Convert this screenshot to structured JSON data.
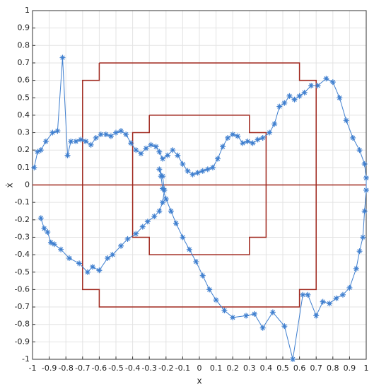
{
  "chart_data": {
    "type": "line",
    "xlabel": "x",
    "ylabel": "ẋ",
    "xlim": [
      -1,
      1
    ],
    "ylim": [
      -1,
      1
    ],
    "xticks": [
      -1,
      -0.9,
      -0.8,
      -0.7,
      -0.6,
      -0.5,
      -0.4,
      -0.3,
      -0.2,
      -0.1,
      0,
      0.1,
      0.2,
      0.3,
      0.4,
      0.5,
      0.6,
      0.7,
      0.8,
      0.9,
      1
    ],
    "yticks": [
      -1,
      -0.9,
      -0.8,
      -0.7,
      -0.6,
      -0.5,
      -0.4,
      -0.3,
      -0.2,
      -0.1,
      0,
      0.1,
      0.2,
      0.3,
      0.4,
      0.5,
      0.6,
      0.7,
      0.8,
      0.9,
      1
    ],
    "grid": true,
    "series": [
      {
        "color": "#a0281e",
        "marker": "none",
        "x": [
          -0.6,
          0.6,
          0.6,
          0.7,
          0.7,
          0.6,
          0.6,
          -0.6,
          -0.6,
          -0.7,
          -0.7,
          -0.6,
          -0.6
        ],
        "values": [
          0.7,
          0.7,
          0.6,
          0.6,
          -0.6,
          -0.6,
          -0.7,
          -0.7,
          -0.6,
          -0.6,
          0.6,
          0.6,
          0.7
        ]
      },
      {
        "color": "#a0281e",
        "marker": "none",
        "x": [
          -0.3,
          0.3,
          0.3,
          0.4,
          0.4,
          0.3,
          0.3,
          -0.3,
          -0.3,
          -0.4,
          -0.4,
          -0.3,
          -0.3
        ],
        "values": [
          0.4,
          0.4,
          0.3,
          0.3,
          -0.3,
          -0.3,
          -0.4,
          -0.4,
          -0.3,
          -0.3,
          0.3,
          0.3,
          0.4
        ]
      },
      {
        "color": "#a0281e",
        "marker": "none",
        "x": [
          -1,
          1
        ],
        "values": [
          0,
          0
        ]
      },
      {
        "color": "#3f7fcf",
        "marker": "*",
        "x": [
          -0.99,
          -0.97,
          -0.95,
          -0.92,
          -0.88,
          -0.85,
          -0.82,
          -0.79,
          -0.77,
          -0.74,
          -0.71,
          -0.68,
          -0.65,
          -0.62,
          -0.59,
          -0.56,
          -0.53,
          -0.5,
          -0.47,
          -0.44,
          -0.41,
          -0.38,
          -0.35,
          -0.32,
          -0.29,
          -0.26,
          -0.24,
          -0.22,
          -0.19,
          -0.16,
          -0.13,
          -0.1,
          -0.07,
          -0.04,
          -0.01,
          0.02,
          0.05,
          0.08,
          0.11,
          0.14,
          0.17,
          0.2,
          0.23,
          0.26,
          0.29,
          0.32,
          0.35,
          0.38,
          0.42,
          0.45,
          0.48,
          0.51,
          0.54,
          0.57,
          0.6,
          0.63,
          0.67,
          0.71,
          0.76,
          0.8,
          0.84,
          0.88,
          0.92,
          0.96,
          0.99,
          1.0,
          1.0,
          0.99,
          0.98,
          0.96,
          0.94,
          0.9,
          0.86,
          0.82,
          0.78,
          0.74,
          0.7,
          0.65,
          0.62,
          0.56,
          0.51,
          0.44,
          0.38,
          0.33,
          0.28,
          0.2,
          0.15,
          0.1,
          0.06,
          0.02,
          -0.02,
          -0.06,
          -0.1,
          -0.14,
          -0.17,
          -0.2,
          -0.22,
          -0.23,
          -0.24,
          -0.22,
          -0.21,
          -0.22,
          -0.24,
          -0.27,
          -0.31,
          -0.34,
          -0.38,
          -0.43,
          -0.47,
          -0.52,
          -0.55,
          -0.6,
          -0.64,
          -0.67,
          -0.72,
          -0.78,
          -0.83,
          -0.87,
          -0.89,
          -0.91,
          -0.93,
          -0.95
        ],
        "values": [
          0.1,
          0.19,
          0.2,
          0.25,
          0.3,
          0.31,
          0.73,
          0.17,
          0.25,
          0.25,
          0.26,
          0.25,
          0.23,
          0.27,
          0.29,
          0.29,
          0.28,
          0.3,
          0.31,
          0.29,
          0.24,
          0.2,
          0.18,
          0.21,
          0.23,
          0.22,
          0.19,
          0.15,
          0.17,
          0.2,
          0.17,
          0.12,
          0.08,
          0.06,
          0.07,
          0.08,
          0.09,
          0.1,
          0.15,
          0.22,
          0.27,
          0.29,
          0.28,
          0.24,
          0.25,
          0.24,
          0.26,
          0.27,
          0.3,
          0.35,
          0.45,
          0.47,
          0.51,
          0.49,
          0.51,
          0.53,
          0.57,
          0.57,
          0.61,
          0.59,
          0.5,
          0.37,
          0.27,
          0.2,
          0.12,
          0.04,
          -0.03,
          -0.15,
          -0.3,
          -0.38,
          -0.48,
          -0.59,
          -0.63,
          -0.65,
          -0.68,
          -0.67,
          -0.75,
          -0.63,
          -0.63,
          -1.0,
          -0.81,
          -0.73,
          -0.82,
          -0.74,
          -0.75,
          -0.76,
          -0.72,
          -0.66,
          -0.6,
          -0.52,
          -0.44,
          -0.37,
          -0.3,
          -0.22,
          -0.15,
          -0.08,
          -0.02,
          0.05,
          0.09,
          0.05,
          -0.03,
          -0.1,
          -0.15,
          -0.18,
          -0.21,
          -0.24,
          -0.28,
          -0.31,
          -0.35,
          -0.4,
          -0.42,
          -0.49,
          -0.47,
          -0.5,
          -0.45,
          -0.42,
          -0.37,
          -0.34,
          -0.33,
          -0.27,
          -0.25,
          -0.19
        ]
      }
    ]
  }
}
